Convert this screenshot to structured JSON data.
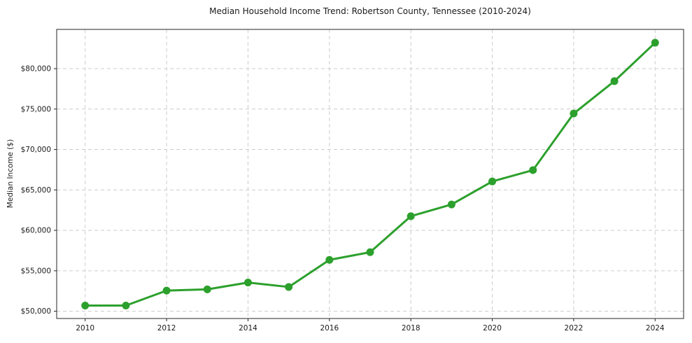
{
  "chart_data": {
    "type": "line",
    "title": "Median Household Income Trend: Robertson County, Tennessee (2010-2024)",
    "xlabel": "",
    "ylabel": "Median Income ($)",
    "series_name": "Median household income",
    "x": [
      2010,
      2011,
      2012,
      2013,
      2014,
      2015,
      2016,
      2017,
      2018,
      2019,
      2020,
      2021,
      2022,
      2023,
      2024
    ],
    "values": [
      50700,
      50700,
      52550,
      52700,
      53550,
      53000,
      56350,
      57300,
      61750,
      63200,
      66050,
      67450,
      74450,
      78450,
      83200
    ],
    "x_ticks": [
      2010,
      2012,
      2014,
      2016,
      2018,
      2020,
      2022,
      2024
    ],
    "x_tick_labels": [
      "2010",
      "2012",
      "2014",
      "2016",
      "2018",
      "2020",
      "2022",
      "2024"
    ],
    "y_ticks": [
      50000,
      55000,
      60000,
      65000,
      70000,
      75000,
      80000
    ],
    "y_tick_labels": [
      "$50,000",
      "$55,000",
      "$60,000",
      "$65,000",
      "$70,000",
      "$75,000",
      "$80,000"
    ],
    "xlim": [
      2009.3,
      2024.7
    ],
    "ylim": [
      49100,
      84850
    ],
    "grid": true,
    "grid_style": "dashed",
    "legend": "none",
    "line_color": "#2ca02c",
    "marker_color": "#2ca02c",
    "marker_shape": "circle",
    "grid_color": "#cccccc",
    "axis_color": "#262626",
    "background_color": "#ffffff"
  }
}
